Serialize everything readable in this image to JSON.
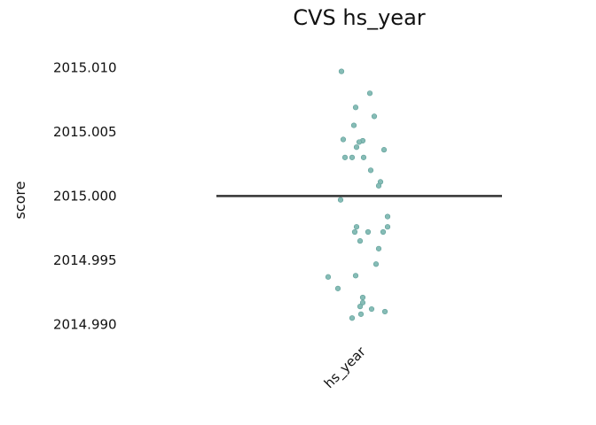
{
  "chart_data": {
    "type": "scatter",
    "title": "CVS hs_year",
    "xlabel": "",
    "ylabel": "score",
    "categories": [
      "hs_year"
    ],
    "ylim": [
      2014.987,
      2015.0125
    ],
    "yticks": [
      2015.01,
      2015.005,
      2015.0,
      2014.995,
      2014.99
    ],
    "ytick_labels": [
      "2015.010",
      "2015.005",
      "2015.000",
      "2014.995",
      "2014.990"
    ],
    "grid": false,
    "reference_line": 2015.0,
    "point_color": "#86bcb6",
    "line_color": "#333333",
    "series": [
      {
        "category": "hs_year",
        "jitter": [
          -0.2,
          0.12,
          -0.04,
          -0.06,
          0.17,
          -0.18,
          -0.03,
          0.04,
          0.0,
          0.05,
          0.28,
          -0.16,
          -0.08,
          0.13,
          0.24,
          0.22,
          -0.21,
          0.32,
          -0.03,
          0.32,
          0.27,
          -0.05,
          0.1,
          0.01,
          0.22,
          0.19,
          -0.04,
          -0.35,
          -0.24,
          0.04,
          0.04,
          0.01,
          0.14,
          0.29,
          0.02,
          -0.08
        ],
        "values": [
          2015.0097,
          2015.008,
          2015.0069,
          2015.0055,
          2015.0062,
          2015.0044,
          2015.0038,
          2015.0043,
          2015.0042,
          2015.003,
          2015.0036,
          2015.003,
          2015.003,
          2015.002,
          2015.0011,
          2015.0008,
          2014.9997,
          2014.9984,
          2014.9976,
          2014.9976,
          2014.9972,
          2014.9972,
          2014.9972,
          2014.9965,
          2014.9959,
          2014.9947,
          2014.9938,
          2014.9937,
          2014.9928,
          2014.9921,
          2014.9917,
          2014.9914,
          2014.9912,
          2014.991,
          2014.9908,
          2014.9905
        ]
      }
    ]
  }
}
